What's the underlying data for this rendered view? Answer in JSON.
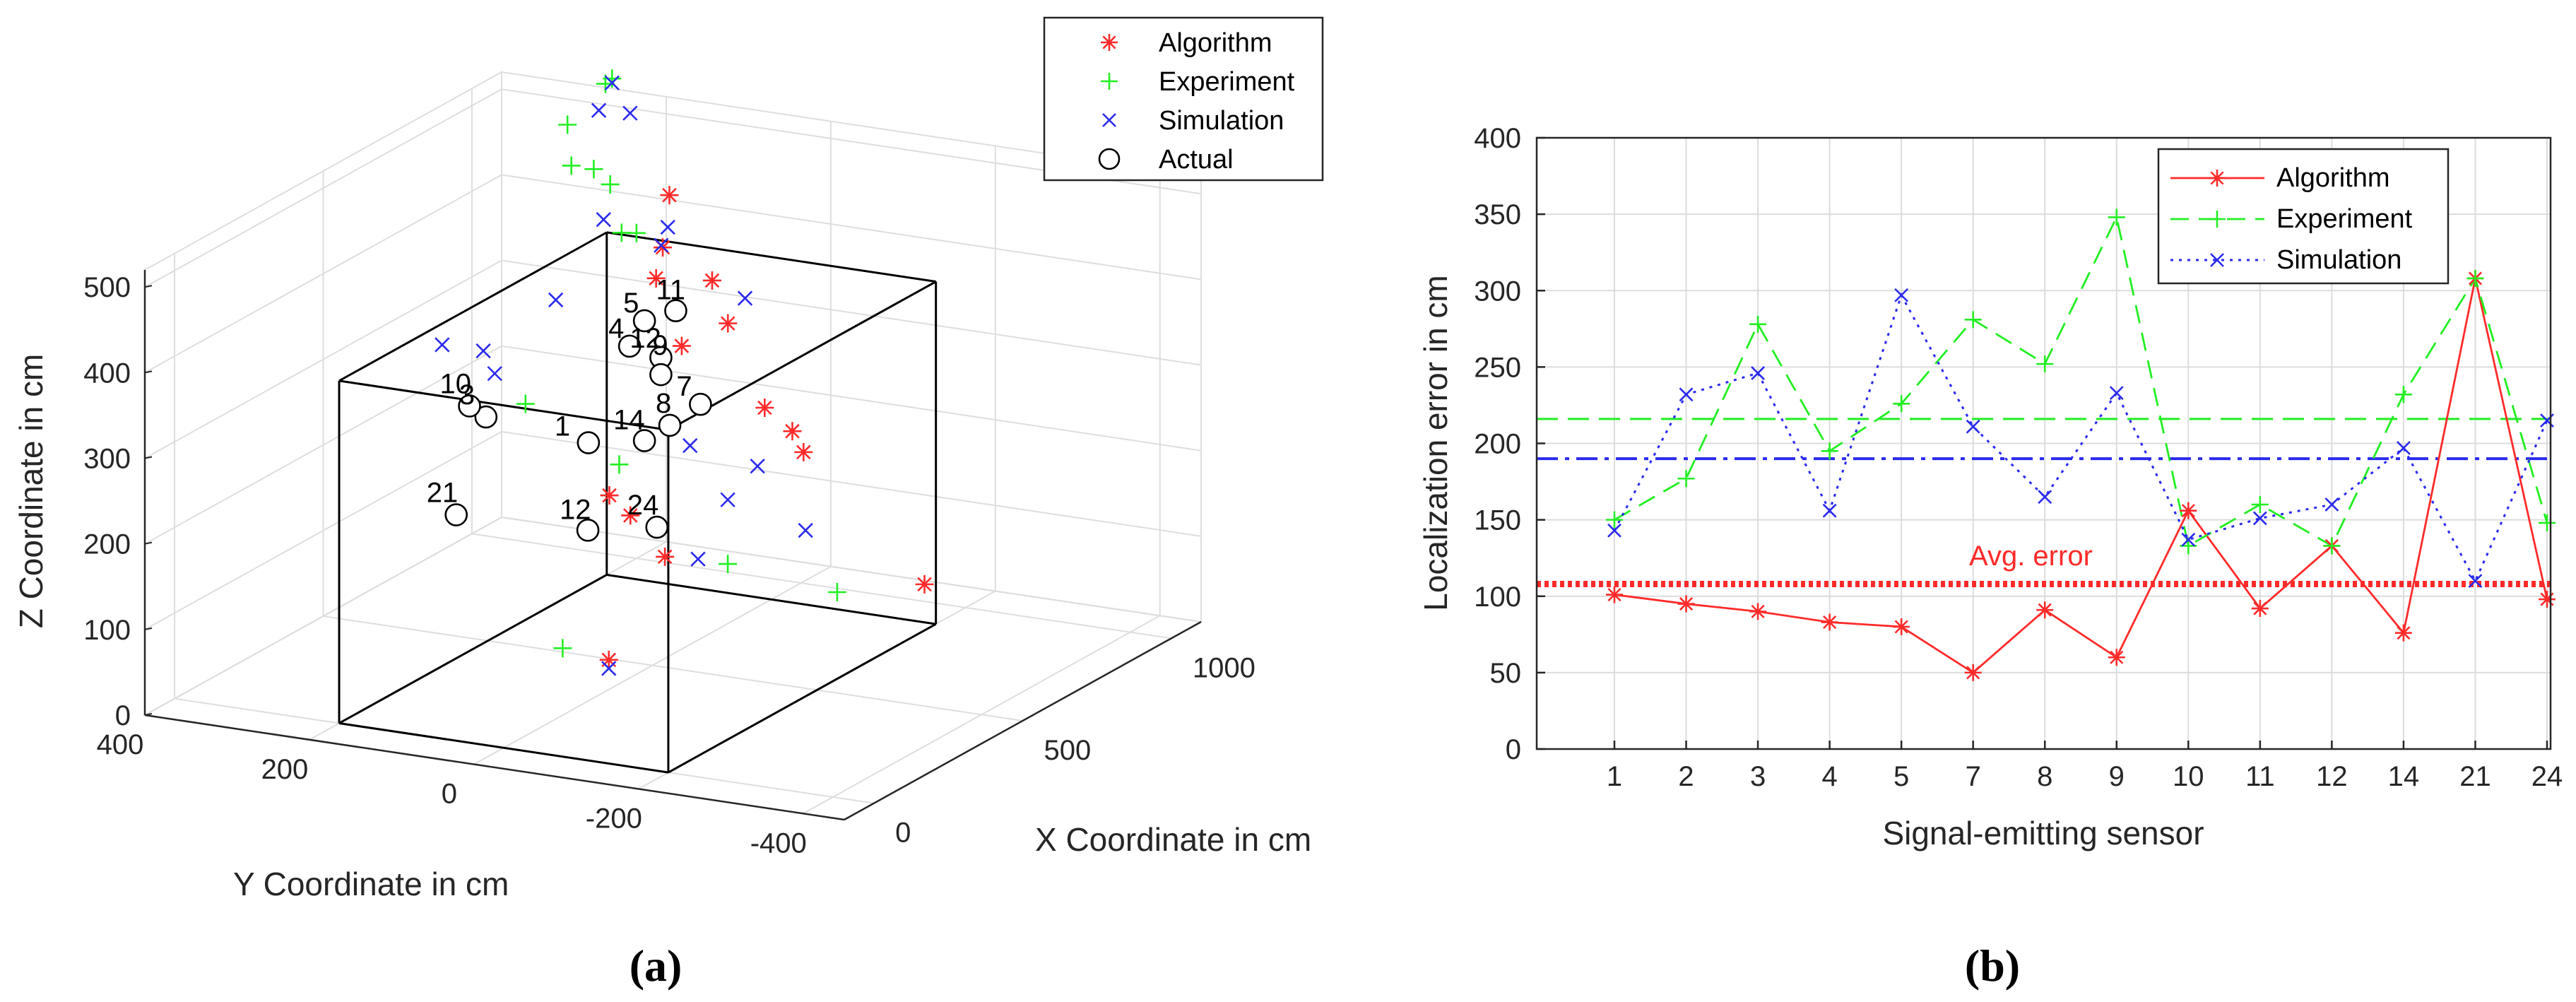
{
  "captions": {
    "a": "(a)",
    "b": "(b)"
  },
  "colors": {
    "algorithm": "#ff2a2a",
    "experiment": "#22ee22",
    "simulation": "#2a2aee",
    "actual": "#000000"
  },
  "chart_data": [
    {
      "type": "scatter",
      "id": "a",
      "is3d": true,
      "xlabel": "X Coordinate in cm",
      "ylabel": "Y Coordinate in cm",
      "zlabel": "Z Coordinate in cm",
      "xlim": [
        -100,
        1100
      ],
      "ylim": [
        -450,
        400
      ],
      "zlim": [
        0,
        520
      ],
      "xticks": [
        0,
        500,
        1000
      ],
      "xtick_labels": [
        "0",
        "500",
        "1000"
      ],
      "yticks": [
        400,
        200,
        0,
        -200,
        -400
      ],
      "ytick_labels": [
        "400",
        "200",
        "0",
        "-200",
        "-400"
      ],
      "zticks": [
        0,
        100,
        200,
        300,
        400,
        500
      ],
      "ztick_labels": [
        "0",
        "100",
        "200",
        "300",
        "400",
        "500"
      ],
      "legend": [
        "Algorithm",
        "Experiment",
        "Simulation",
        "Actual"
      ],
      "legend_position": "top-right",
      "box": {
        "x": [
          0,
          900
        ],
        "y": [
          -200,
          200
        ],
        "z": [
          0,
          400
        ]
      },
      "series": [
        {
          "name": "Algorithm",
          "marker": "*",
          "points": [
            [
              -200,
              -200,
              170
            ],
            [
              210,
              -120,
              200
            ],
            [
              260,
              -60,
              230
            ],
            [
              300,
              -20,
              240
            ],
            [
              1000,
              -150,
              20
            ],
            [
              900,
              140,
              355
            ],
            [
              950,
              150,
              380
            ],
            [
              1000,
              160,
              430
            ],
            [
              920,
              60,
              310
            ],
            [
              950,
              90,
              350
            ],
            [
              850,
              -10,
              235
            ],
            [
              820,
              80,
              300
            ],
            [
              860,
              -40,
              210
            ],
            [
              870,
              -50,
              185
            ]
          ]
        },
        {
          "name": "Experiment",
          "marker": "+",
          "points": [
            [
              -300,
              -180,
              200
            ],
            [
              200,
              -200,
              205
            ],
            [
              250,
              -50,
              290
            ],
            [
              350,
              100,
              320
            ],
            [
              900,
              -80,
              20
            ],
            [
              950,
              200,
              390
            ],
            [
              1000,
              200,
              380
            ],
            [
              1050,
              250,
              420
            ],
            [
              1050,
              270,
              435
            ],
            [
              1030,
              290,
              440
            ],
            [
              1100,
              320,
              470
            ],
            [
              1200,
              310,
              500
            ],
            [
              1250,
              320,
              495
            ]
          ]
        },
        {
          "name": "Simulation",
          "marker": "x",
          "points": [
            [
              -200,
              -200,
              160
            ],
            [
              100,
              -200,
              230
            ],
            [
              200,
              -200,
              280
            ],
            [
              300,
              -200,
              300
            ],
            [
              350,
              -100,
              300
            ],
            [
              600,
              -150,
              160
            ],
            [
              950,
              50,
              335
            ],
            [
              1000,
              170,
              370
            ],
            [
              1050,
              180,
              380
            ],
            [
              900,
              350,
              240
            ],
            [
              800,
              300,
              240
            ],
            [
              900,
              400,
              240
            ],
            [
              950,
              280,
              300
            ],
            [
              1000,
              240,
              390
            ],
            [
              1150,
              300,
              480
            ],
            [
              1200,
              280,
              470
            ],
            [
              1250,
              320,
              490
            ]
          ]
        },
        {
          "name": "Actual",
          "marker": "o",
          "points": [
            [
              100,
              -150,
              260
            ],
            [
              200,
              -30,
              220
            ],
            [
              300,
              130,
              310
            ],
            [
              300,
              150,
              320
            ],
            [
              200,
              130,
              215
            ],
            [
              700,
              100,
              320
            ],
            [
              750,
              100,
              340
            ],
            [
              800,
              80,
              345
            ],
            [
              750,
              80,
              300
            ],
            [
              750,
              80,
              280
            ],
            [
              800,
              50,
              240
            ],
            [
              780,
              80,
              215
            ],
            [
              750,
              100,
              200
            ],
            [
              700,
              150,
              200
            ]
          ]
        }
      ],
      "point_labels": [
        "24",
        "12",
        "3",
        "10",
        "21",
        "4",
        "5",
        "11",
        "12",
        "9",
        "7",
        "8",
        "14",
        "1"
      ]
    },
    {
      "type": "line",
      "id": "b",
      "xlabel": "Signal-emitting sensor",
      "ylabel": "Localization error in cm",
      "categories": [
        "1",
        "2",
        "3",
        "4",
        "5",
        "7",
        "8",
        "9",
        "10",
        "11",
        "12",
        "14",
        "21",
        "24"
      ],
      "ylim": [
        0,
        400
      ],
      "yticks": [
        0,
        50,
        100,
        150,
        200,
        250,
        300,
        350,
        400
      ],
      "ytick_labels": [
        "0",
        "50",
        "100",
        "150",
        "200",
        "250",
        "300",
        "350",
        "400"
      ],
      "grid": true,
      "legend": [
        "Algorithm",
        "Experiment",
        "Simulation"
      ],
      "legend_position": "top-right",
      "series": [
        {
          "name": "Algorithm",
          "values": [
            101,
            95,
            90,
            83,
            80,
            50,
            91,
            60,
            156,
            92,
            133,
            76,
            308,
            98
          ]
        },
        {
          "name": "Experiment",
          "values": [
            150,
            177,
            278,
            195,
            226,
            281,
            252,
            348,
            133,
            160,
            133,
            232,
            308,
            148
          ]
        },
        {
          "name": "Simulation",
          "values": [
            143,
            232,
            246,
            156,
            297,
            211,
            165,
            233,
            137,
            151,
            160,
            197,
            110,
            215
          ]
        }
      ],
      "averages": [
        {
          "name": "Algorithm",
          "value": 108
        },
        {
          "name": "Experiment",
          "value": 216
        },
        {
          "name": "Simulation",
          "value": 190
        }
      ],
      "annotation": "Avg. error"
    }
  ]
}
